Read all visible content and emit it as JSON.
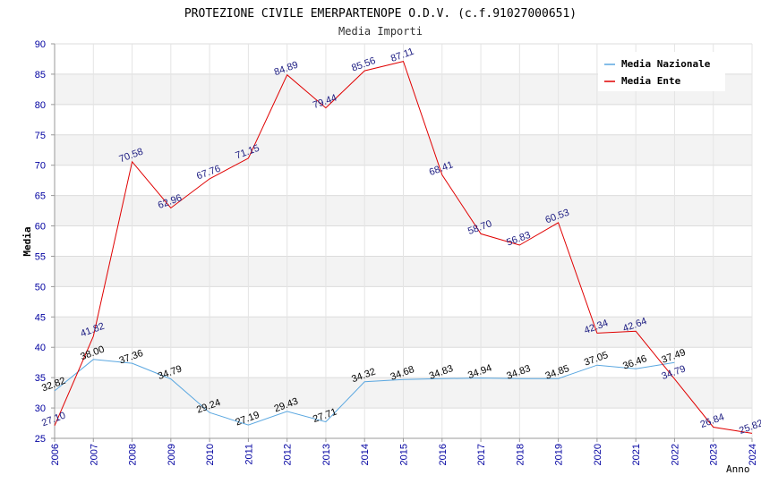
{
  "chart_data": {
    "type": "line",
    "title": "PROTEZIONE CIVILE EMERPARTENOPE O.D.V. (c.f.91027000651)",
    "subtitle": "Media Importi",
    "xlabel": "Anno",
    "ylabel": "Media",
    "ylim": [
      25,
      90
    ],
    "ytick_step": 5,
    "grid": true,
    "legend_position": "top-right",
    "x": [
      "2006",
      "2007",
      "2008",
      "2009",
      "2010",
      "2011",
      "2012",
      "2013",
      "2014",
      "2015",
      "2016",
      "2017",
      "2018",
      "2019",
      "2020",
      "2021",
      "2022",
      "2023",
      "2024"
    ],
    "series": [
      {
        "name": "Media Nazionale",
        "color": "#5aa7e0",
        "values": [
          32.82,
          38.0,
          37.36,
          34.79,
          29.24,
          27.19,
          29.43,
          27.71,
          34.32,
          34.68,
          34.83,
          34.94,
          34.83,
          34.85,
          37.05,
          36.46,
          37.49,
          null,
          null
        ],
        "labels": [
          "32.82",
          "38.00",
          "37.36",
          "34.79",
          "29.24",
          "27.19",
          "29.43",
          "27.71",
          "34.32",
          "34.68",
          "34.83",
          "34.94",
          "34.83",
          "34.85",
          "37.05",
          "36.46",
          "37.49",
          "",
          ""
        ]
      },
      {
        "name": "Media Ente",
        "color": "#e00000",
        "values": [
          27.1,
          41.82,
          70.58,
          62.96,
          67.76,
          71.15,
          84.89,
          79.44,
          85.56,
          87.11,
          68.41,
          58.7,
          56.83,
          60.53,
          42.34,
          42.64,
          34.79,
          26.84,
          25.82
        ],
        "labels": [
          "27.10",
          "41.82",
          "70.58",
          "62.96",
          "67.76",
          "71.15",
          "84.89",
          "79.44",
          "85.56",
          "87.11",
          "68.41",
          "58.70",
          "56.83",
          "60.53",
          "42.34",
          "42.64",
          "34.79",
          "26.84",
          "25.82"
        ]
      }
    ]
  }
}
